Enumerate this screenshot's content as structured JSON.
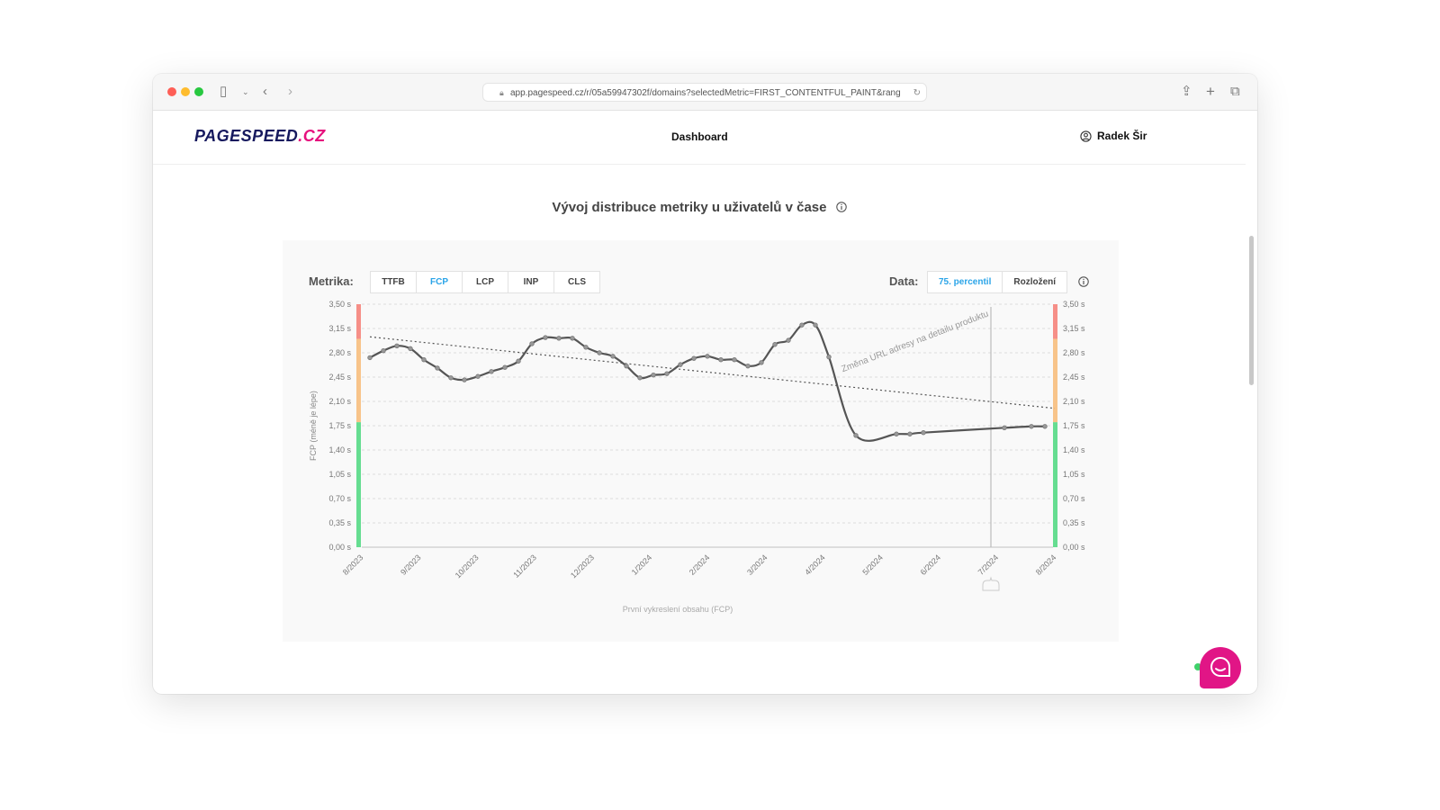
{
  "browser": {
    "url": "app.pagespeed.cz/r/05a59947302f/domains?selectedMetric=FIRST_CONTENTFUL_PAINT&rang",
    "icons": [
      "sidebar-icon",
      "chevron-down-icon",
      "back-icon",
      "forward-icon",
      "lock-icon",
      "reload-icon",
      "share-icon",
      "new-tab-icon",
      "tabs-icon"
    ]
  },
  "header": {
    "logo_main": "PAGESPEED",
    "logo_accent": ".CZ",
    "nav_item": "Dashboard",
    "user_name": "Radek Šir"
  },
  "section": {
    "title": "Vývoj distribuce metriky u uživatelů v čase"
  },
  "controls": {
    "metric_label": "Metrika:",
    "metrics": [
      "TTFB",
      "FCP",
      "LCP",
      "INP",
      "CLS"
    ],
    "selected_metric": "FCP",
    "data_label": "Data:",
    "data_options": [
      "75. percentil",
      "Rozložení"
    ],
    "selected_data": "75. percentil"
  },
  "colors": {
    "accent": "#2aa4e8",
    "brand": "#16195e",
    "brand_pink": "#e6107d",
    "good": "#66dd91",
    "needs_improvement": "#f8c48a",
    "poor": "#f68f88",
    "line": "#555555"
  },
  "chart_data": {
    "type": "line",
    "ylabel": "FCP (méně je lépe)",
    "xlabel": "První vykreslení obsahu (FCP)",
    "ylim": [
      0,
      3.5
    ],
    "yticks": [
      "0,00 s",
      "0,35 s",
      "0,70 s",
      "1,05 s",
      "1,40 s",
      "1,75 s",
      "2,10 s",
      "2,45 s",
      "2,80 s",
      "3,15 s",
      "3,50 s"
    ],
    "ytick_values": [
      0,
      0.35,
      0.7,
      1.05,
      1.4,
      1.75,
      2.1,
      2.45,
      2.8,
      3.15,
      3.5
    ],
    "xticks": [
      {
        "label": "8/2023",
        "date": "2023-08-01"
      },
      {
        "label": "9/2023",
        "date": "2023-09-01"
      },
      {
        "label": "10/2023",
        "date": "2023-10-01"
      },
      {
        "label": "11/2023",
        "date": "2023-11-01"
      },
      {
        "label": "12/2023",
        "date": "2023-12-01"
      },
      {
        "label": "1/2024",
        "date": "2024-01-01"
      },
      {
        "label": "2/2024",
        "date": "2024-02-01"
      },
      {
        "label": "3/2024",
        "date": "2024-03-01"
      },
      {
        "label": "4/2024",
        "date": "2024-04-01"
      },
      {
        "label": "5/2024",
        "date": "2024-05-01"
      },
      {
        "label": "6/2024",
        "date": "2024-06-01"
      },
      {
        "label": "7/2024",
        "date": "2024-07-01"
      },
      {
        "label": "8/2024",
        "date": "2024-08-01"
      }
    ],
    "grid": true,
    "thresholds": {
      "good_max": 1.8,
      "poor_min": 3.0
    },
    "series": [
      {
        "points": [
          [
            "2023-08-05",
            2.73
          ],
          [
            "2023-08-12",
            2.83
          ],
          [
            "2023-08-19",
            2.9
          ],
          [
            "2023-08-26",
            2.86
          ],
          [
            "2023-09-02",
            2.7
          ],
          [
            "2023-09-09",
            2.58
          ],
          [
            "2023-09-16",
            2.44
          ],
          [
            "2023-09-23",
            2.41
          ],
          [
            "2023-09-30",
            2.46
          ],
          [
            "2023-10-07",
            2.53
          ],
          [
            "2023-10-14",
            2.59
          ],
          [
            "2023-10-21",
            2.68
          ],
          [
            "2023-10-28",
            2.93
          ],
          [
            "2023-11-04",
            3.02
          ],
          [
            "2023-11-11",
            3.01
          ],
          [
            "2023-11-18",
            3.01
          ],
          [
            "2023-11-25",
            2.88
          ],
          [
            "2023-12-02",
            2.8
          ],
          [
            "2023-12-09",
            2.75
          ],
          [
            "2023-12-16",
            2.61
          ],
          [
            "2023-12-23",
            2.44
          ],
          [
            "2023-12-30",
            2.48
          ],
          [
            "2024-01-06",
            2.5
          ],
          [
            "2024-01-13",
            2.63
          ],
          [
            "2024-01-20",
            2.72
          ],
          [
            "2024-01-27",
            2.75
          ],
          [
            "2024-02-03",
            2.7
          ],
          [
            "2024-02-10",
            2.7
          ],
          [
            "2024-02-17",
            2.61
          ],
          [
            "2024-02-24",
            2.66
          ],
          [
            "2024-03-02",
            2.92
          ],
          [
            "2024-03-09",
            2.98
          ],
          [
            "2024-03-16",
            3.2
          ],
          [
            "2024-03-23",
            3.2
          ],
          [
            "2024-03-30",
            2.74
          ],
          [
            "2024-04-13",
            1.61
          ],
          [
            "2024-05-04",
            1.63
          ],
          [
            "2024-05-11",
            1.63
          ],
          [
            "2024-05-18",
            1.65
          ],
          [
            "2024-06-29",
            1.72
          ],
          [
            "2024-07-13",
            1.74
          ],
          [
            "2024-07-20",
            1.74
          ]
        ]
      }
    ],
    "trend": {
      "start": [
        "2023-08-05",
        3.03
      ],
      "end": [
        "2024-08-01",
        2.0
      ]
    },
    "annotation": {
      "date": "2024-06-24",
      "text": "Změna URL adresy na detailu produktu"
    }
  }
}
